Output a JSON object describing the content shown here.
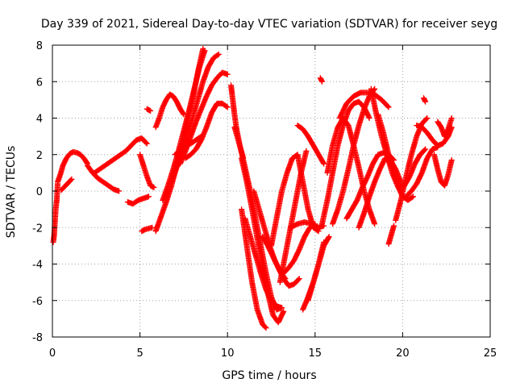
{
  "chart_data": {
    "type": "scatter",
    "title": "Day 339 of 2021, Sidereal Day-to-day VTEC variation (SDTVAR) for receiver seyg",
    "xlabel": "GPS time / hours",
    "ylabel": "SDTVAR / TECUs",
    "xlim": [
      0,
      25
    ],
    "ylim": [
      -8,
      8
    ],
    "x_ticks": [
      "0",
      "5",
      "10",
      "15",
      "20",
      "25"
    ],
    "y_ticks": [
      "-8",
      "-6",
      "-4",
      "-2",
      "0",
      "2",
      "4",
      "6",
      "8"
    ],
    "grid": true,
    "marker": "+",
    "color": "#ff0000",
    "series": [
      {
        "x": [
          0.05,
          0.1,
          0.15,
          0.2,
          0.25,
          0.3
        ],
        "y": [
          -2.8,
          -2.4,
          -1.6,
          -0.9,
          -0.5,
          0.4
        ]
      },
      {
        "x": [
          0.3,
          0.45,
          0.6,
          0.8,
          1.0,
          1.2,
          1.4,
          1.6,
          1.8,
          2.0
        ],
        "y": [
          0.5,
          0.9,
          1.4,
          1.8,
          2.05,
          2.15,
          2.1,
          2.0,
          1.8,
          1.5
        ]
      },
      {
        "x": [
          0.5,
          0.7,
          0.9,
          1.1
        ],
        "y": [
          0.05,
          0.25,
          0.45,
          0.65
        ]
      },
      {
        "x": [
          2.0,
          2.3,
          2.6,
          2.9,
          3.2,
          3.5,
          3.8
        ],
        "y": [
          1.4,
          1.0,
          0.7,
          0.5,
          0.3,
          0.1,
          0.0
        ]
      },
      {
        "x": [
          2.4,
          2.7,
          3.0,
          3.3,
          3.6,
          3.9,
          4.2,
          4.5,
          4.8,
          5.1,
          5.4
        ],
        "y": [
          1.0,
          1.2,
          1.4,
          1.6,
          1.8,
          2.0,
          2.2,
          2.5,
          2.8,
          2.9,
          2.6
        ]
      },
      {
        "x": [
          5.0,
          5.2,
          5.4,
          5.6,
          5.8
        ],
        "y": [
          2.0,
          1.4,
          0.8,
          0.3,
          0.2
        ]
      },
      {
        "x": [
          4.3,
          4.6,
          4.9,
          5.2,
          5.5
        ],
        "y": [
          -0.6,
          -0.7,
          -0.5,
          -0.4,
          -0.3
        ]
      },
      {
        "x": [
          5.1,
          5.3,
          5.5,
          5.7
        ],
        "y": [
          -2.2,
          -2.1,
          -2.05,
          -2.0
        ]
      },
      {
        "x": [
          5.4,
          5.6
        ],
        "y": [
          4.5,
          4.4
        ]
      },
      {
        "x": [
          5.9,
          6.1,
          6.3,
          6.5,
          6.7,
          6.9,
          7.1,
          7.3,
          7.5
        ],
        "y": [
          3.5,
          4.0,
          4.6,
          5.0,
          5.3,
          5.2,
          4.9,
          4.5,
          4.2
        ]
      },
      {
        "x": [
          5.9,
          6.2,
          6.5,
          6.8,
          7.1,
          7.4,
          7.7,
          8.0,
          8.3,
          8.6
        ],
        "y": [
          -2.2,
          -1.4,
          -0.6,
          0.3,
          1.4,
          2.5,
          3.8,
          5.0,
          6.5,
          7.8
        ]
      },
      {
        "x": [
          6.3,
          6.6,
          6.9,
          7.2,
          7.5,
          7.8,
          8.1,
          8.4,
          8.7
        ],
        "y": [
          -0.5,
          0.3,
          1.2,
          2.2,
          3.3,
          4.4,
          5.6,
          6.8,
          7.7
        ]
      },
      {
        "x": [
          6.8,
          7.1,
          7.4,
          7.7,
          8.0,
          8.3,
          8.6,
          8.9,
          9.2,
          9.5
        ],
        "y": [
          0.5,
          1.3,
          2.2,
          3.1,
          4.0,
          5.0,
          6.0,
          6.8,
          7.3,
          7.5
        ]
      },
      {
        "x": [
          7.3,
          7.6,
          7.9,
          8.2,
          8.5,
          8.8,
          9.1,
          9.4,
          9.7,
          10.0
        ],
        "y": [
          1.5,
          2.2,
          3.0,
          3.8,
          4.5,
          5.2,
          5.8,
          6.2,
          6.5,
          6.4
        ]
      },
      {
        "x": [
          7.6,
          7.9,
          8.2,
          8.5,
          8.8,
          9.1,
          9.4,
          9.7,
          10.0
        ],
        "y": [
          1.8,
          2.0,
          2.3,
          2.8,
          3.5,
          4.3,
          4.8,
          4.8,
          4.6
        ]
      },
      {
        "x": [
          7.0,
          7.3,
          7.6,
          7.9,
          8.2,
          8.5
        ],
        "y": [
          2.0,
          2.2,
          2.5,
          2.6,
          2.8,
          3.0
        ]
      },
      {
        "x": [
          10.2,
          10.3,
          10.4,
          10.5,
          10.7,
          10.9
        ],
        "y": [
          5.8,
          5.0,
          4.2,
          3.5,
          2.5,
          1.8
        ]
      },
      {
        "x": [
          10.4,
          10.7,
          11.0,
          11.3,
          11.6,
          11.9,
          12.2,
          12.5,
          12.8,
          13.1
        ],
        "y": [
          3.5,
          2.5,
          1.3,
          0.0,
          -1.5,
          -3.0,
          -4.5,
          -5.8,
          -6.5,
          -6.4
        ]
      },
      {
        "x": [
          10.8,
          11.1,
          11.4,
          11.7,
          12.0,
          12.3,
          12.6,
          12.9,
          13.2
        ],
        "y": [
          1.8,
          0.5,
          -1.0,
          -2.6,
          -4.2,
          -5.6,
          -6.8,
          -7.2,
          -6.6
        ]
      },
      {
        "x": [
          10.8,
          11.1,
          11.4,
          11.7,
          12.0,
          12.2
        ],
        "y": [
          -1.0,
          -3.0,
          -5.0,
          -6.5,
          -7.3,
          -7.5
        ]
      },
      {
        "x": [
          11.0,
          11.3,
          11.6,
          11.9,
          12.2,
          12.5,
          12.8,
          13.1
        ],
        "y": [
          -1.5,
          -2.5,
          -3.5,
          -4.5,
          -5.4,
          -6.0,
          -6.3,
          -6.4
        ]
      },
      {
        "x": [
          11.5,
          11.8,
          12.1,
          12.4,
          12.7,
          13.0,
          13.3
        ],
        "y": [
          0.0,
          -1.0,
          -2.0,
          -3.0,
          -3.8,
          -4.4,
          -4.8
        ]
      },
      {
        "x": [
          12.0,
          12.3,
          12.6,
          12.9,
          13.2,
          13.5,
          13.8,
          14.1
        ],
        "y": [
          -2.5,
          -3.0,
          -3.6,
          -4.2,
          -4.8,
          -5.2,
          -5.1,
          -4.8
        ]
      },
      {
        "x": [
          12.5,
          12.8,
          13.1,
          13.4,
          13.7,
          14.0,
          14.3,
          14.6,
          14.9,
          15.2
        ],
        "y": [
          -3.0,
          -1.5,
          0.0,
          1.0,
          1.8,
          2.0,
          0.5,
          -1.0,
          -2.0,
          -2.2
        ]
      },
      {
        "x": [
          13.0,
          13.3,
          13.6,
          13.9,
          14.2,
          14.5
        ],
        "y": [
          -5.0,
          -3.5,
          -2.0,
          -0.5,
          1.0,
          2.2
        ]
      },
      {
        "x": [
          13.2,
          13.5,
          13.8,
          14.1,
          14.4,
          14.7,
          15.0
        ],
        "y": [
          -4.5,
          -4.2,
          -3.8,
          -3.2,
          -2.5,
          -2.0,
          -1.8
        ]
      },
      {
        "x": [
          13.6,
          14.0,
          14.4,
          14.8,
          15.2,
          15.5
        ],
        "y": [
          -2.0,
          -1.8,
          -1.7,
          -1.8,
          -2.0,
          -1.9
        ]
      },
      {
        "x": [
          14.0,
          14.3,
          14.6,
          14.9,
          15.2,
          15.5
        ],
        "y": [
          3.6,
          3.4,
          3.0,
          2.5,
          2.0,
          1.5
        ]
      },
      {
        "x": [
          14.3,
          14.6,
          14.9,
          15.2,
          15.5
        ],
        "y": [
          -6.5,
          -5.8,
          -5.0,
          -4.0,
          -2.8
        ]
      },
      {
        "x": [
          14.6,
          14.9,
          15.2,
          15.5,
          15.8
        ],
        "y": [
          -6.0,
          -5.0,
          -4.0,
          -3.0,
          -2.5
        ]
      },
      {
        "x": [
          15.3,
          15.4
        ],
        "y": [
          6.2,
          6.0
        ]
      },
      {
        "x": [
          15.7,
          16.0,
          16.3,
          16.6,
          16.9,
          17.2,
          17.5,
          17.8,
          18.1,
          18.4
        ],
        "y": [
          1.0,
          2.5,
          3.5,
          4.0,
          3.6,
          2.5,
          1.3,
          0.0,
          -1.0,
          -1.8
        ]
      },
      {
        "x": [
          15.4,
          15.7,
          16.0,
          16.3,
          16.6,
          16.9,
          17.2,
          17.5,
          17.8,
          18.1
        ],
        "y": [
          -1.8,
          -0.5,
          1.0,
          2.5,
          3.6,
          4.4,
          4.8,
          4.9,
          4.6,
          4.0
        ]
      },
      {
        "x": [
          16.0,
          16.3,
          16.6,
          16.9,
          17.2,
          17.5,
          17.8,
          18.1,
          18.4
        ],
        "y": [
          -1.8,
          -1.0,
          0.0,
          1.2,
          2.5,
          3.6,
          4.5,
          5.2,
          5.6
        ]
      },
      {
        "x": [
          16.4,
          16.8,
          17.2,
          17.6,
          18.0,
          18.4,
          18.8,
          19.2
        ],
        "y": [
          4.0,
          4.8,
          5.2,
          5.4,
          5.4,
          5.3,
          5.0,
          4.6
        ]
      },
      {
        "x": [
          16.8,
          17.1,
          17.4,
          17.7,
          18.0,
          18.3,
          18.6,
          18.9,
          19.2,
          19.5
        ],
        "y": [
          -1.5,
          -1.0,
          -0.5,
          0.2,
          0.8,
          1.5,
          2.0,
          2.1,
          2.0,
          1.7
        ]
      },
      {
        "x": [
          17.5,
          17.8,
          18.1,
          18.4,
          18.7,
          19.0,
          19.3,
          19.6,
          19.9
        ],
        "y": [
          -2.0,
          -1.2,
          -0.3,
          0.5,
          1.2,
          1.8,
          1.7,
          1.2,
          0.5
        ]
      },
      {
        "x": [
          18.2,
          18.5,
          18.8,
          19.1,
          19.4,
          19.7,
          20.0,
          20.3,
          20.6
        ],
        "y": [
          5.6,
          4.2,
          3.0,
          2.0,
          1.0,
          0.3,
          -0.3,
          -0.5,
          -0.3
        ]
      },
      {
        "x": [
          18.6,
          18.9,
          19.2,
          19.5,
          19.8,
          20.1,
          20.4,
          20.7,
          21.0,
          21.3
        ],
        "y": [
          4.2,
          3.2,
          2.0,
          1.0,
          0.3,
          0.3,
          0.8,
          1.5,
          2.0,
          2.3
        ]
      },
      {
        "x": [
          19.2,
          19.35,
          19.5
        ],
        "y": [
          -2.9,
          -2.4,
          -1.9
        ]
      },
      {
        "x": [
          19.6,
          19.9,
          20.2,
          20.5,
          20.8,
          21.1,
          21.4
        ],
        "y": [
          -1.6,
          -0.5,
          0.8,
          2.0,
          3.0,
          3.7,
          4.0
        ]
      },
      {
        "x": [
          20.2,
          20.5,
          20.8,
          21.1,
          21.4,
          21.7,
          22.0
        ],
        "y": [
          -0.3,
          0.0,
          0.4,
          1.0,
          1.8,
          2.3,
          2.4
        ]
      },
      {
        "x": [
          20.8,
          21.1,
          21.4,
          21.7,
          22.0,
          22.3,
          22.6,
          22.8
        ],
        "y": [
          3.6,
          3.5,
          3.2,
          2.8,
          2.5,
          2.6,
          3.0,
          3.5
        ]
      },
      {
        "x": [
          21.2,
          21.3
        ],
        "y": [
          5.1,
          4.9
        ]
      },
      {
        "x": [
          21.8,
          22.0,
          22.2,
          22.4,
          22.6,
          22.8
        ],
        "y": [
          2.0,
          1.2,
          0.5,
          0.3,
          0.9,
          1.7
        ]
      },
      {
        "x": [
          22.0,
          22.2,
          22.4,
          22.6,
          22.8
        ],
        "y": [
          3.8,
          3.5,
          3.0,
          3.4,
          4.0
        ]
      }
    ]
  }
}
